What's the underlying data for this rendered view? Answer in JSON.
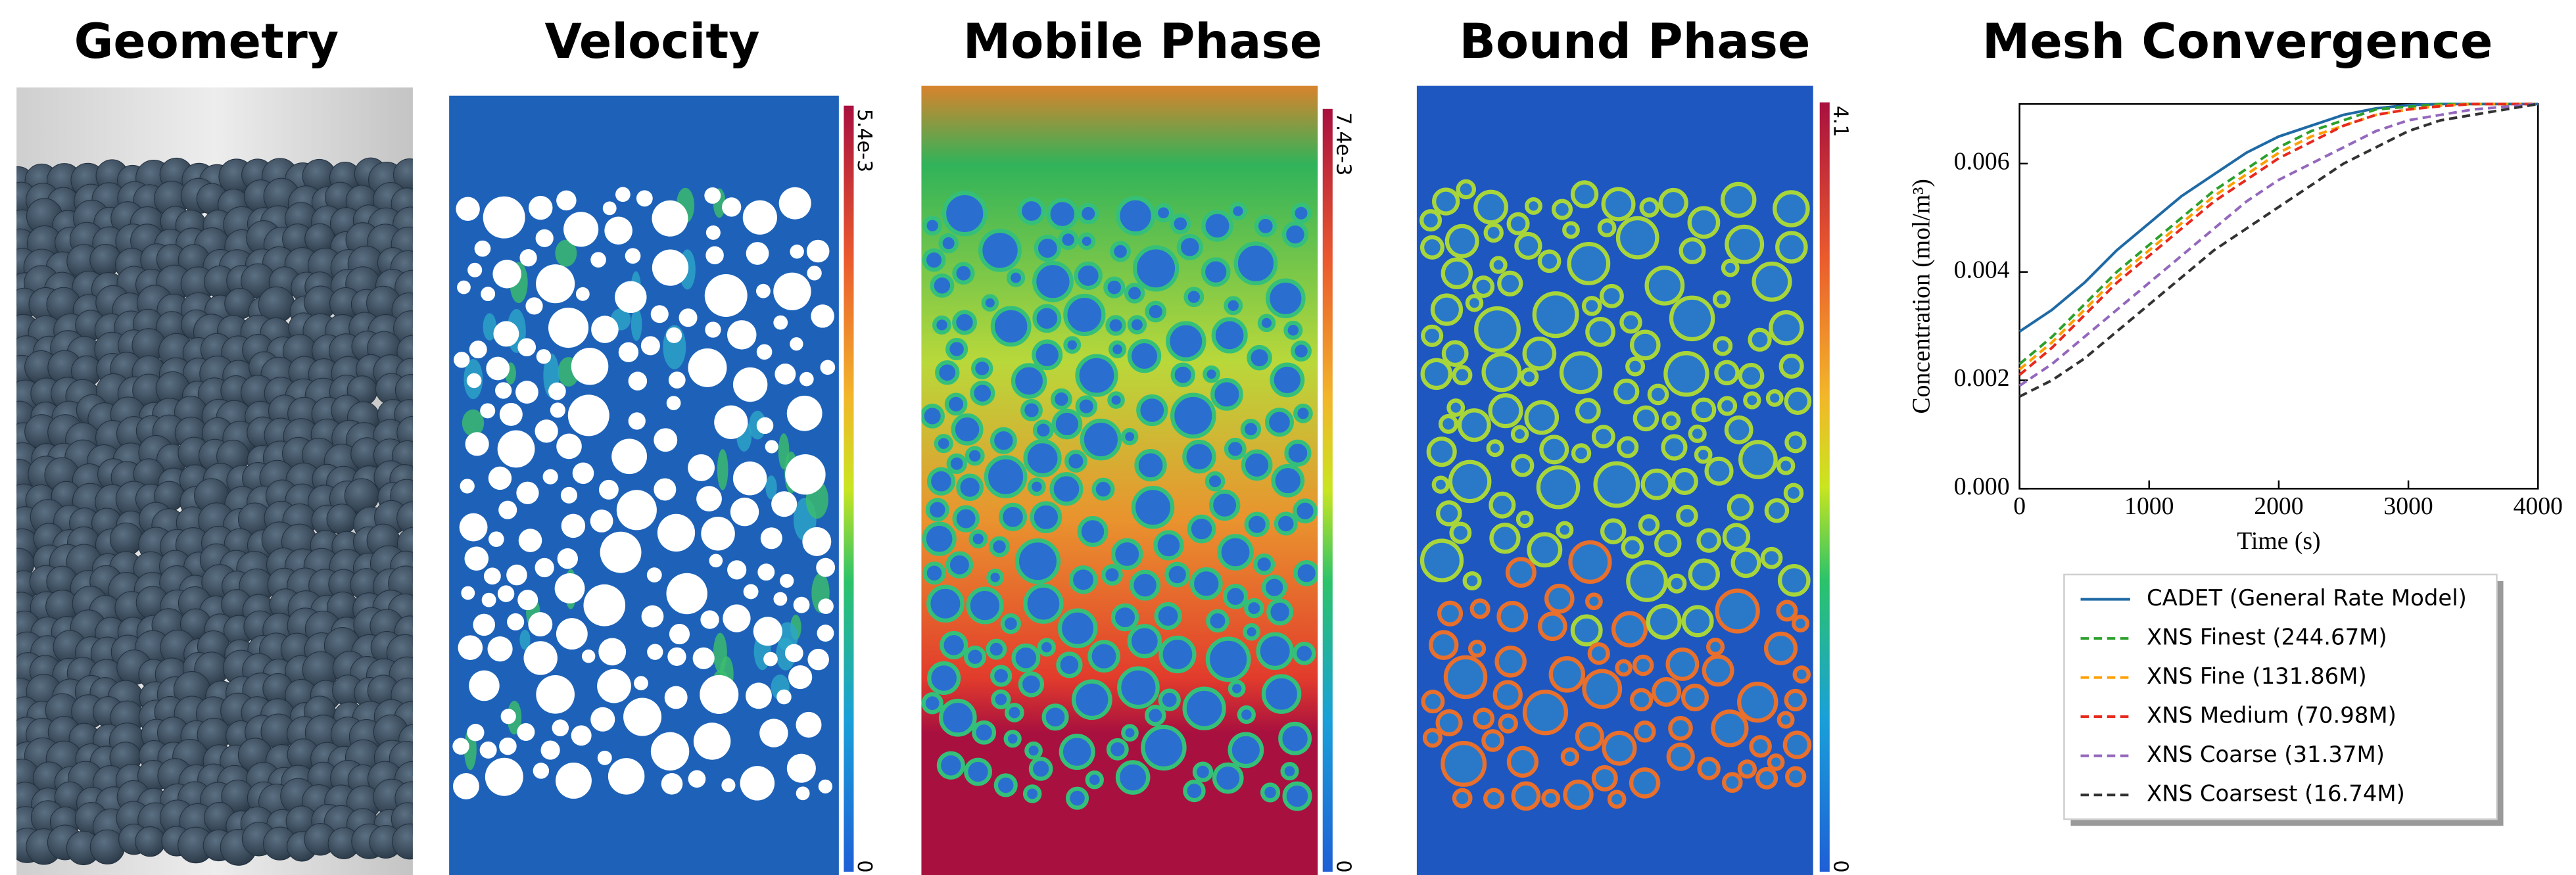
{
  "panels": [
    {
      "title": "Geometry"
    },
    {
      "title": "Velocity",
      "colorbar": {
        "max_label": "5.4e-3",
        "min_label": "0"
      }
    },
    {
      "title": "Mobile Phase",
      "colorbar": {
        "max_label": "7.4e-3",
        "min_label": "0"
      }
    },
    {
      "title": "Bound Phase",
      "colorbar": {
        "max_label": "4.1",
        "min_label": "0"
      }
    }
  ],
  "chart_data": {
    "type": "line",
    "title": "Mesh Convergence",
    "x_label": "Time (s)",
    "y_label": "Concentration (mol/m³)",
    "x": [
      0,
      250,
      500,
      750,
      1000,
      1250,
      1500,
      1750,
      2000,
      2250,
      2500,
      2750,
      3000,
      3250,
      3500,
      3750,
      4000
    ],
    "series": [
      {
        "name": "CADET (General Rate Model)",
        "color": "#1f6aa5",
        "dash": "solid",
        "values": [
          0.0029,
          0.0033,
          0.0038,
          0.0044,
          0.0049,
          0.0054,
          0.0058,
          0.0062,
          0.0065,
          0.0067,
          0.0069,
          0.00702,
          0.00708,
          0.0071,
          0.0071,
          0.0071,
          0.0071
        ]
      },
      {
        "name": "XNS Finest (244.67M)",
        "color": "#2ca02c",
        "dash": "dashed",
        "values": [
          0.0023,
          0.0028,
          0.0034,
          0.004,
          0.0045,
          0.005,
          0.0055,
          0.0059,
          0.0063,
          0.0066,
          0.0068,
          0.007,
          0.00705,
          0.0071,
          0.0071,
          0.0071,
          0.0071
        ]
      },
      {
        "name": "XNS Fine (131.86M)",
        "color": "#ff9f00",
        "dash": "dashed",
        "values": [
          0.0022,
          0.0027,
          0.0033,
          0.0039,
          0.0044,
          0.0049,
          0.0054,
          0.0058,
          0.0062,
          0.0065,
          0.0067,
          0.0069,
          0.007,
          0.00707,
          0.0071,
          0.0071,
          0.0071
        ]
      },
      {
        "name": "XNS Medium (70.98M)",
        "color": "#e8291c",
        "dash": "dashed",
        "values": [
          0.0021,
          0.0026,
          0.0032,
          0.0038,
          0.0043,
          0.0048,
          0.0053,
          0.0057,
          0.0061,
          0.0064,
          0.0067,
          0.0069,
          0.007,
          0.00706,
          0.0071,
          0.0071,
          0.0071
        ]
      },
      {
        "name": "XNS Coarse (31.37M)",
        "color": "#9467bd",
        "dash": "dashed",
        "values": [
          0.0019,
          0.0023,
          0.0028,
          0.0033,
          0.0038,
          0.0043,
          0.0048,
          0.0053,
          0.0057,
          0.006,
          0.0063,
          0.0066,
          0.0068,
          0.0069,
          0.007,
          0.00705,
          0.0071
        ]
      },
      {
        "name": "XNS Coarsest (16.74M)",
        "color": "#333333",
        "dash": "dashed",
        "values": [
          0.0017,
          0.002,
          0.0024,
          0.0029,
          0.0034,
          0.0039,
          0.0044,
          0.0048,
          0.0052,
          0.0056,
          0.006,
          0.0063,
          0.0066,
          0.0068,
          0.0069,
          0.007,
          0.0071
        ]
      }
    ],
    "xlim": [
      0,
      4000
    ],
    "xticks": [
      0,
      1000,
      2000,
      3000,
      4000
    ],
    "ylim": [
      0,
      0.0071
    ],
    "yticks": [
      {
        "value": 0,
        "label": "0.000"
      },
      {
        "value": 0.002,
        "label": "0.002"
      },
      {
        "value": 0.004,
        "label": "0.004"
      },
      {
        "value": 0.006,
        "label": "0.006"
      }
    ],
    "legend": "below"
  }
}
